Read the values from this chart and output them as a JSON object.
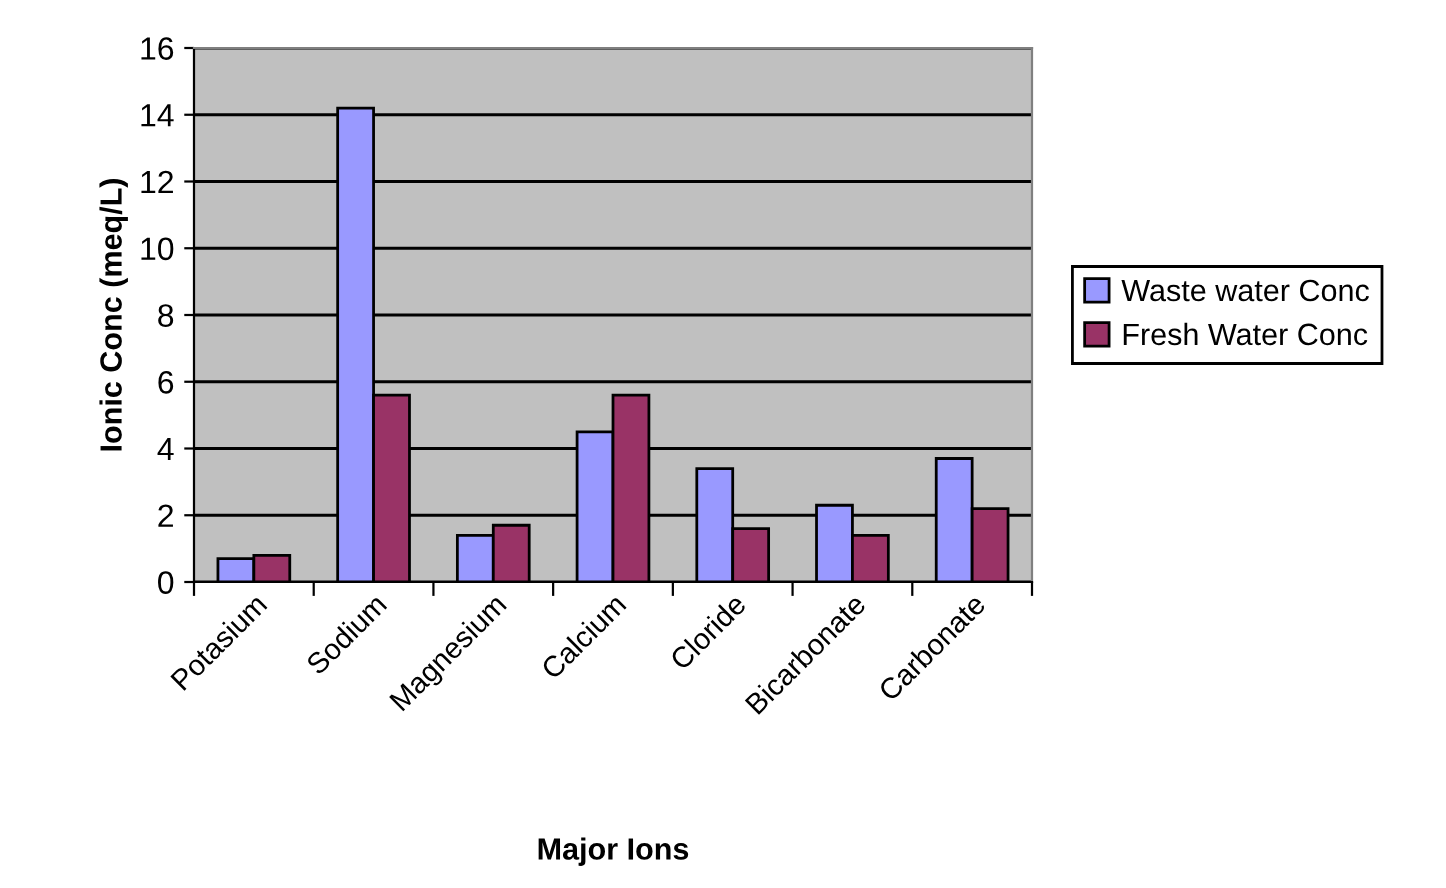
{
  "chart_data": {
    "type": "bar",
    "xlabel": "Major Ions",
    "ylabel": "Ionic Conc (meq/L)",
    "categories": [
      "Potasium",
      "Sodium",
      "Magnesium",
      "Calcium",
      "Cloride",
      "Bicarbonate",
      "Carbonate"
    ],
    "series": [
      {
        "name": "Waste water Conc",
        "color": "#9999ff",
        "values": [
          0.7,
          14.2,
          1.4,
          4.5,
          3.4,
          2.3,
          3.7
        ]
      },
      {
        "name": "Fresh Water Conc",
        "color": "#993366",
        "values": [
          0.8,
          5.6,
          1.7,
          5.6,
          1.6,
          1.4,
          2.2
        ]
      }
    ],
    "ylim": [
      0,
      16
    ],
    "yticks": [
      0,
      2,
      4,
      6,
      8,
      10,
      12,
      14,
      16
    ],
    "grid": "y",
    "legend": "right"
  }
}
